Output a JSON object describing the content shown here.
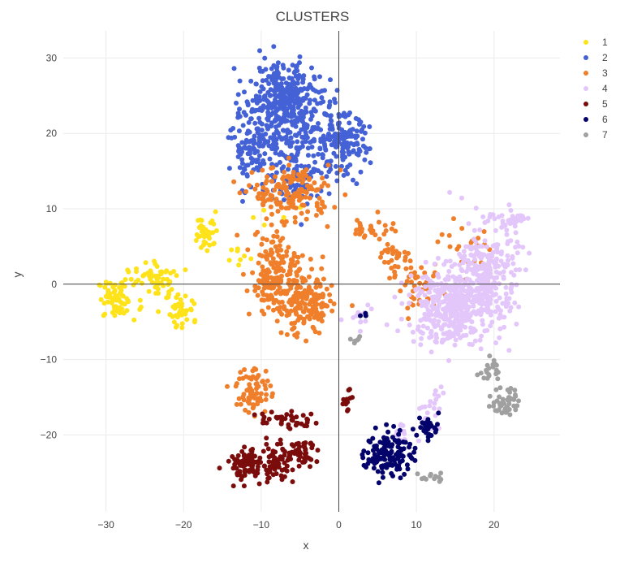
{
  "chart_data": {
    "type": "scatter",
    "title": "CLUSTERS",
    "xlabel": "x",
    "ylabel": "y",
    "xlim": [
      -35.5,
      28.5
    ],
    "ylim": [
      -30.2,
      33.6
    ],
    "xticks": [
      -30,
      -20,
      -10,
      0,
      10,
      20
    ],
    "yticks": [
      -20,
      -10,
      0,
      10,
      20,
      30
    ],
    "xtick_labels": [
      "−30",
      "−20",
      "−10",
      "0",
      "10",
      "20"
    ],
    "ytick_labels": [
      "−20",
      "−10",
      "0",
      "10",
      "20",
      "30"
    ],
    "grid": true,
    "legend_position": "top-right",
    "series": [
      {
        "name": "1",
        "color": "#FFE31A",
        "clusters": [
          {
            "cx": -28.5,
            "cy": -2.0,
            "sx": 1.3,
            "sy": 1.3,
            "n": 70
          },
          {
            "cx": -23.5,
            "cy": 0.5,
            "sx": 1.4,
            "sy": 1.2,
            "n": 55
          },
          {
            "cx": -20.0,
            "cy": -3.5,
            "sx": 1.0,
            "sy": 1.1,
            "n": 40
          },
          {
            "cx": -17.0,
            "cy": 7.0,
            "sx": 0.8,
            "sy": 1.3,
            "n": 35
          },
          {
            "cx": -13.0,
            "cy": 4.0,
            "sx": 1.0,
            "sy": 1.5,
            "n": 8
          },
          {
            "cx": -8.0,
            "cy": 9.0,
            "sx": 1.5,
            "sy": 1.0,
            "n": 6
          }
        ]
      },
      {
        "name": "2",
        "color": "#4462D6",
        "clusters": [
          {
            "cx": -7.5,
            "cy": 25.0,
            "sx": 2.2,
            "sy": 2.2,
            "n": 260
          },
          {
            "cx": -10.5,
            "cy": 18.5,
            "sx": 1.6,
            "sy": 2.5,
            "n": 130
          },
          {
            "cx": 0.5,
            "cy": 18.5,
            "sx": 1.7,
            "sy": 2.0,
            "n": 130
          },
          {
            "cx": -5.0,
            "cy": 20.5,
            "sx": 3.0,
            "sy": 3.0,
            "n": 180
          },
          {
            "cx": -5.0,
            "cy": 14.0,
            "sx": 2.2,
            "sy": 1.8,
            "n": 80
          }
        ]
      },
      {
        "name": "3",
        "color": "#F07F2B",
        "clusters": [
          {
            "cx": -6.0,
            "cy": 12.0,
            "sx": 2.5,
            "sy": 1.8,
            "n": 160
          },
          {
            "cx": -8.0,
            "cy": 0.0,
            "sx": 1.7,
            "sy": 2.0,
            "n": 150
          },
          {
            "cx": -4.0,
            "cy": -3.0,
            "sx": 1.6,
            "sy": 2.0,
            "n": 150
          },
          {
            "cx": -7.5,
            "cy": 3.5,
            "sx": 2.5,
            "sy": 2.0,
            "n": 60
          },
          {
            "cx": -11.0,
            "cy": -14.0,
            "sx": 1.1,
            "sy": 1.6,
            "n": 70
          },
          {
            "cx": 4.5,
            "cy": 7.5,
            "sx": 1.3,
            "sy": 0.8,
            "n": 30
          },
          {
            "cx": 7.0,
            "cy": 3.5,
            "sx": 1.2,
            "sy": 1.3,
            "n": 30
          },
          {
            "cx": 10.5,
            "cy": -1.0,
            "sx": 1.3,
            "sy": 1.5,
            "n": 40
          },
          {
            "cx": 17.0,
            "cy": 5.0,
            "sx": 2.0,
            "sy": 1.5,
            "n": 20
          }
        ]
      },
      {
        "name": "4",
        "color": "#E3C6FA",
        "clusters": [
          {
            "cx": 14.0,
            "cy": -3.0,
            "sx": 2.5,
            "sy": 2.5,
            "n": 350
          },
          {
            "cx": 19.0,
            "cy": 1.0,
            "sx": 2.0,
            "sy": 3.5,
            "n": 300
          },
          {
            "cx": 22.5,
            "cy": 8.5,
            "sx": 0.8,
            "sy": 0.5,
            "n": 30
          },
          {
            "cx": 12.0,
            "cy": -17.0,
            "sx": 0.8,
            "sy": 2.0,
            "n": 20
          },
          {
            "cx": 8.5,
            "cy": -19.5,
            "sx": 1.0,
            "sy": 0.7,
            "n": 15
          },
          {
            "cx": 3.0,
            "cy": -4.0,
            "sx": 1.0,
            "sy": 1.0,
            "n": 12
          }
        ]
      },
      {
        "name": "5",
        "color": "#7B0C0C",
        "clusters": [
          {
            "cx": -12.0,
            "cy": -24.0,
            "sx": 1.2,
            "sy": 1.0,
            "n": 80
          },
          {
            "cx": -8.0,
            "cy": -23.5,
            "sx": 1.3,
            "sy": 1.2,
            "n": 70
          },
          {
            "cx": -5.0,
            "cy": -22.5,
            "sx": 1.2,
            "sy": 0.8,
            "n": 40
          },
          {
            "cx": -6.5,
            "cy": -18.0,
            "sx": 1.8,
            "sy": 0.6,
            "n": 40
          },
          {
            "cx": 1.0,
            "cy": -15.0,
            "sx": 0.3,
            "sy": 0.8,
            "n": 12
          }
        ]
      },
      {
        "name": "6",
        "color": "#03036B",
        "clusters": [
          {
            "cx": 6.5,
            "cy": -22.5,
            "sx": 1.5,
            "sy": 1.5,
            "n": 130
          },
          {
            "cx": 11.5,
            "cy": -19.0,
            "sx": 0.7,
            "sy": 0.8,
            "n": 30
          },
          {
            "cx": 3.0,
            "cy": -4.0,
            "sx": 0.4,
            "sy": 0.3,
            "n": 3
          }
        ]
      },
      {
        "name": "7",
        "color": "#A0A0A0",
        "clusters": [
          {
            "cx": 21.5,
            "cy": -15.5,
            "sx": 0.9,
            "sy": 1.0,
            "n": 45
          },
          {
            "cx": 19.5,
            "cy": -11.5,
            "sx": 0.6,
            "sy": 0.8,
            "n": 20
          },
          {
            "cx": 12.0,
            "cy": -25.5,
            "sx": 0.8,
            "sy": 0.4,
            "n": 12
          },
          {
            "cx": 2.5,
            "cy": -7.5,
            "sx": 0.4,
            "sy": 0.3,
            "n": 6
          }
        ]
      }
    ]
  }
}
